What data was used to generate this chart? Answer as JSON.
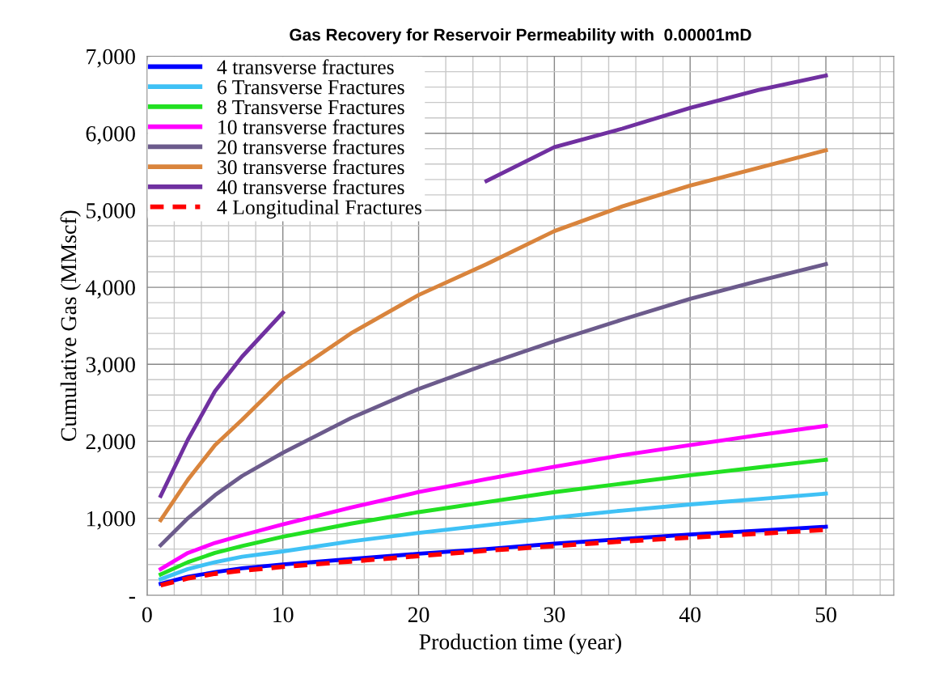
{
  "chart_data": {
    "type": "line",
    "title": "Gas Recovery for Reservoir Permeability with  0.00001mD",
    "xlabel": "Production time (year)",
    "ylabel": "Cumulative Gas (MMscf)",
    "x": [
      1,
      3,
      5,
      7,
      10,
      15,
      20,
      25,
      30,
      35,
      40,
      45,
      50
    ],
    "series": [
      {
        "name": "4 transverse fractures",
        "color": "#0000ff",
        "values": [
          150,
          240,
          300,
          350,
          400,
          470,
          540,
          600,
          670,
          730,
          790,
          840,
          890
        ]
      },
      {
        "name": "6 Transverse Fractures",
        "color": "#3fc1f5",
        "values": [
          210,
          340,
          430,
          500,
          570,
          700,
          810,
          910,
          1010,
          1100,
          1180,
          1250,
          1320
        ]
      },
      {
        "name": "8 Transverse Fractures",
        "color": "#22e022",
        "values": [
          270,
          430,
          550,
          640,
          760,
          930,
          1080,
          1210,
          1340,
          1450,
          1560,
          1660,
          1760
        ]
      },
      {
        "name": "10 transverse fractures",
        "color": "#ff00ff",
        "values": [
          340,
          550,
          680,
          780,
          920,
          1140,
          1340,
          1510,
          1670,
          1820,
          1950,
          2080,
          2200
        ]
      },
      {
        "name": "20 transverse fractures",
        "color": "#6c5b8c",
        "values": [
          650,
          1000,
          1300,
          1550,
          1850,
          2300,
          2680,
          3000,
          3300,
          3580,
          3850,
          4080,
          4300
        ]
      },
      {
        "name": "30 transverse fractures",
        "color": "#d9843c",
        "values": [
          975,
          1500,
          1950,
          2280,
          2800,
          3400,
          3900,
          4300,
          4730,
          5050,
          5320,
          5550,
          5780
        ]
      },
      {
        "name": "40 transverse fractures",
        "color": "#7030a0",
        "values": [
          1290,
          2020,
          2650,
          3100,
          3670,
          null,
          null,
          5380,
          5820,
          6060,
          6330,
          6560,
          6750
        ]
      },
      {
        "name": "4 Longitudinal Fractures",
        "color": "#ff0000",
        "line_style": "dashed",
        "values": [
          130,
          220,
          280,
          320,
          370,
          440,
          510,
          580,
          640,
          700,
          750,
          800,
          850
        ]
      }
    ],
    "xlim": [
      0,
      55
    ],
    "xticks": [
      0,
      {
        "value": 2,
        "label": null
      },
      {
        "value": 4,
        "label": null
      },
      {
        "value": 6,
        "label": null
      },
      {
        "value": 8,
        "label": null
      },
      10,
      {
        "value": 12,
        "label": null
      },
      {
        "value": 14,
        "label": null
      },
      {
        "value": 16,
        "label": null
      },
      {
        "value": 18,
        "label": null
      },
      20,
      {
        "value": 22,
        "label": null
      },
      {
        "value": 24,
        "label": null
      },
      {
        "value": 26,
        "label": null
      },
      {
        "value": 28,
        "label": null
      },
      30,
      {
        "value": 32,
        "label": null
      },
      {
        "value": 34,
        "label": null
      },
      {
        "value": 36,
        "label": null
      },
      {
        "value": 38,
        "label": null
      },
      40,
      {
        "value": 42,
        "label": null
      },
      {
        "value": 44,
        "label": null
      },
      {
        "value": 46,
        "label": null
      },
      {
        "value": 48,
        "label": null
      },
      50,
      {
        "value": 52,
        "label": null
      },
      {
        "value": 54,
        "label": null
      }
    ],
    "ylim": [
      0,
      7000
    ],
    "yticks": [
      {
        "value": 0,
        "label": "-"
      },
      {
        "value": 200,
        "label": null
      },
      {
        "value": 400,
        "label": null
      },
      {
        "value": 600,
        "label": null
      },
      {
        "value": 800,
        "label": null
      },
      {
        "value": 1000,
        "label": "1,000"
      },
      {
        "value": 1200,
        "label": null
      },
      {
        "value": 1400,
        "label": null
      },
      {
        "value": 1600,
        "label": null
      },
      {
        "value": 1800,
        "label": null
      },
      {
        "value": 2000,
        "label": "2,000"
      },
      {
        "value": 2200,
        "label": null
      },
      {
        "value": 2400,
        "label": null
      },
      {
        "value": 2600,
        "label": null
      },
      {
        "value": 2800,
        "label": null
      },
      {
        "value": 3000,
        "label": "3,000"
      },
      {
        "value": 3200,
        "label": null
      },
      {
        "value": 3400,
        "label": null
      },
      {
        "value": 3600,
        "label": null
      },
      {
        "value": 3800,
        "label": null
      },
      {
        "value": 4000,
        "label": "4,000"
      },
      {
        "value": 4200,
        "label": null
      },
      {
        "value": 4400,
        "label": null
      },
      {
        "value": 4600,
        "label": null
      },
      {
        "value": 4800,
        "label": null
      },
      {
        "value": 5000,
        "label": "5,000"
      },
      {
        "value": 5200,
        "label": null
      },
      {
        "value": 5400,
        "label": null
      },
      {
        "value": 5600,
        "label": null
      },
      {
        "value": 5800,
        "label": null
      },
      {
        "value": 6000,
        "label": "6,000"
      },
      {
        "value": 6200,
        "label": null
      },
      {
        "value": 6400,
        "label": null
      },
      {
        "value": 6600,
        "label": null
      },
      {
        "value": 6800,
        "label": null
      },
      {
        "value": 7000,
        "label": "7,000"
      }
    ],
    "grid": true,
    "legend": "top left",
    "line_style": "solid",
    "marker": "none"
  }
}
